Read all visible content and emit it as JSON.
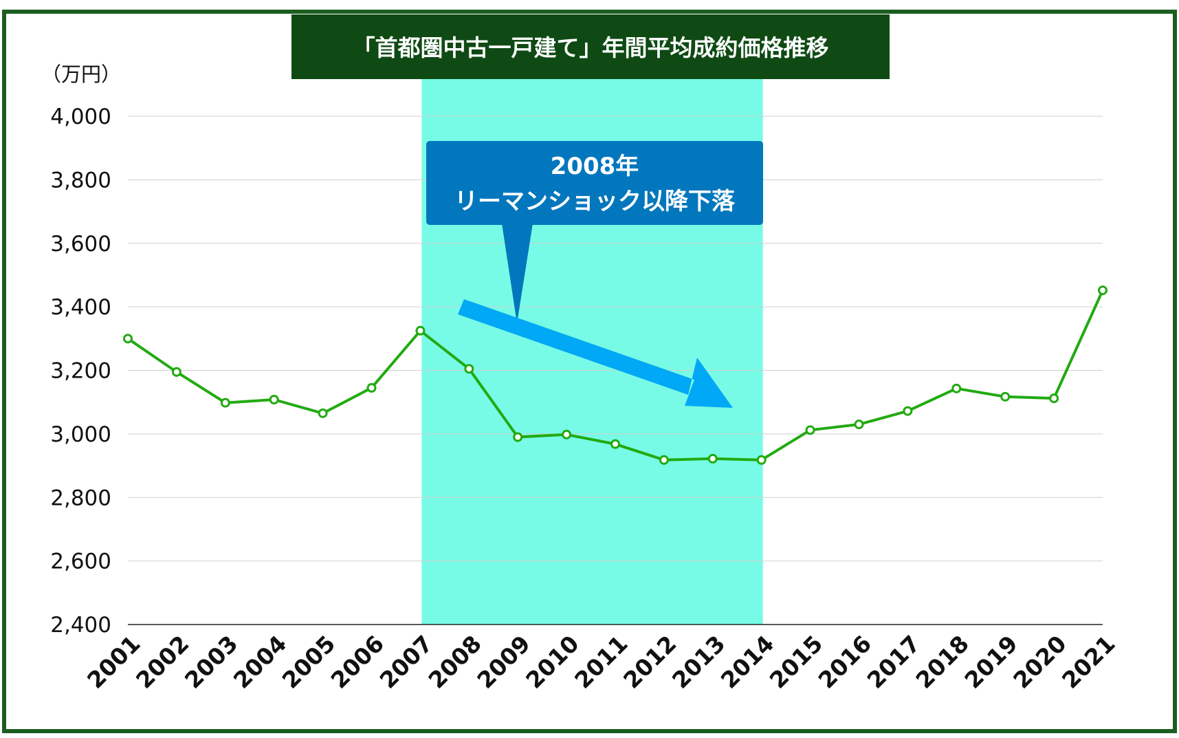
{
  "colors": {
    "frame": "#1b5e20",
    "title_bg": "#0f4a14",
    "title_text": "#ffffff",
    "highlight_band": "#77fbe6",
    "line": "#22aa11",
    "callout_bg": "#0277bd",
    "callout_text": "#ffffff",
    "arrow": "#00a8f5",
    "grid": "#cfcfcf",
    "axis_text": "#111111"
  },
  "chart_data": {
    "type": "line",
    "title": "「首都圏中古一戸建て」年間平均成約価格推移",
    "ylabel": "（万円）",
    "xlabel": "",
    "categories": [
      "2001",
      "2002",
      "2003",
      "2004",
      "2005",
      "2006",
      "2007",
      "2008",
      "2009",
      "2010",
      "2011",
      "2012",
      "2013",
      "2014",
      "2015",
      "2016",
      "2017",
      "2018",
      "2019",
      "2020",
      "2021"
    ],
    "series": [
      {
        "values": [
          3300,
          3195,
          3098,
          3108,
          3065,
          3145,
          3325,
          3205,
          2990,
          2998,
          2968,
          2918,
          2922,
          2918,
          3012,
          3030,
          3072,
          3143,
          3117,
          3112,
          3452
        ]
      }
    ],
    "ylim": [
      2400,
      4000
    ],
    "yticks": [
      "4,000",
      "3,800",
      "3,600",
      "3,400",
      "3,200",
      "3,000",
      "2,800",
      "2,600",
      "2,400"
    ],
    "ytick_values": [
      4000,
      3800,
      3600,
      3400,
      3200,
      3000,
      2800,
      2600,
      2400
    ],
    "grid": true,
    "legend": "none",
    "highlight_range": [
      "2007",
      "2014"
    ],
    "annotation": {
      "line1": "2008年",
      "line2": "リーマンショック以降下落"
    }
  }
}
